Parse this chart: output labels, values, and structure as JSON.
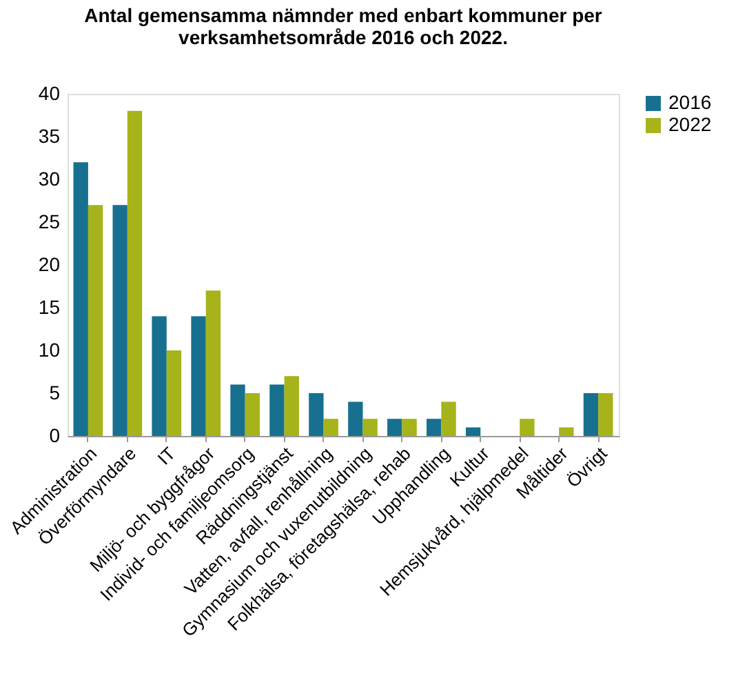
{
  "chart_data": {
    "type": "bar",
    "title": "Antal gemensamma nämnder med enbart kommuner per\nverksamhetsområde 2016 och 2022.",
    "categories": [
      "Administration",
      "Överförmyndare",
      "IT",
      "Miljö- och byggfrågor",
      "Individ- och familjeomsorg",
      "Räddningstjänst",
      "Vatten, avfall, renhållning",
      "Gymnasium och vuxenutbildning",
      "Folkhälsa, företagshälsa, rehab",
      "Upphandling",
      "Kultur",
      "Hemsjukvård, hjälpmedel",
      "Måltider",
      "Övrigt"
    ],
    "series": [
      {
        "name": "2016",
        "color": "#17708f",
        "values": [
          32,
          27,
          14,
          14,
          6,
          6,
          5,
          4,
          2,
          2,
          1,
          0,
          0,
          5
        ]
      },
      {
        "name": "2022",
        "color": "#a6b31a",
        "values": [
          27,
          38,
          10,
          17,
          5,
          7,
          2,
          2,
          2,
          4,
          0,
          2,
          1,
          5
        ]
      }
    ],
    "ylim": [
      0,
      40
    ],
    "yticks": [
      0,
      5,
      10,
      15,
      20,
      25,
      30,
      35,
      40
    ],
    "grid": false,
    "legend": "right"
  }
}
